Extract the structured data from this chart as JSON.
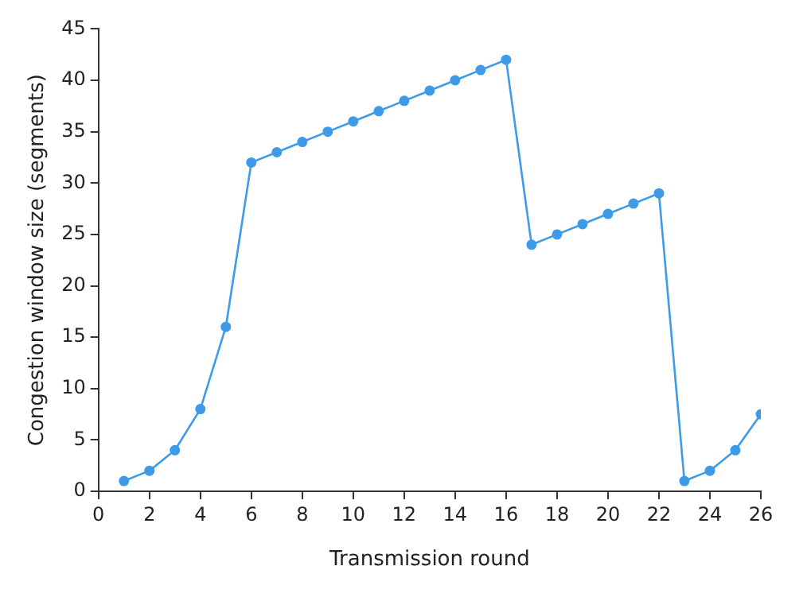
{
  "chart_data": {
    "type": "line",
    "xlabel": "Transmission round",
    "ylabel": "Congestion window size (segments)",
    "x": [
      1,
      2,
      3,
      4,
      5,
      6,
      7,
      8,
      9,
      10,
      11,
      12,
      13,
      14,
      15,
      16,
      17,
      18,
      19,
      20,
      21,
      22,
      23,
      24,
      25,
      26
    ],
    "series": [
      {
        "color": "#3d9be9",
        "values": [
          1,
          2,
          4,
          8,
          16,
          32,
          33,
          34,
          35,
          36,
          37,
          38,
          39,
          40,
          41,
          42,
          24,
          25,
          26,
          27,
          28,
          29,
          1,
          2,
          4,
          7.5
        ]
      }
    ],
    "xlim": [
      0,
      26
    ],
    "xticks": [
      0,
      2,
      4,
      6,
      8,
      10,
      12,
      14,
      16,
      18,
      20,
      22,
      24,
      26
    ],
    "ylim": [
      0,
      45
    ],
    "yticks": [
      0,
      5,
      10,
      15,
      20,
      25,
      30,
      35,
      40,
      45
    ],
    "grid": false,
    "legend": false,
    "marker": "circle",
    "line_style": "solid"
  }
}
